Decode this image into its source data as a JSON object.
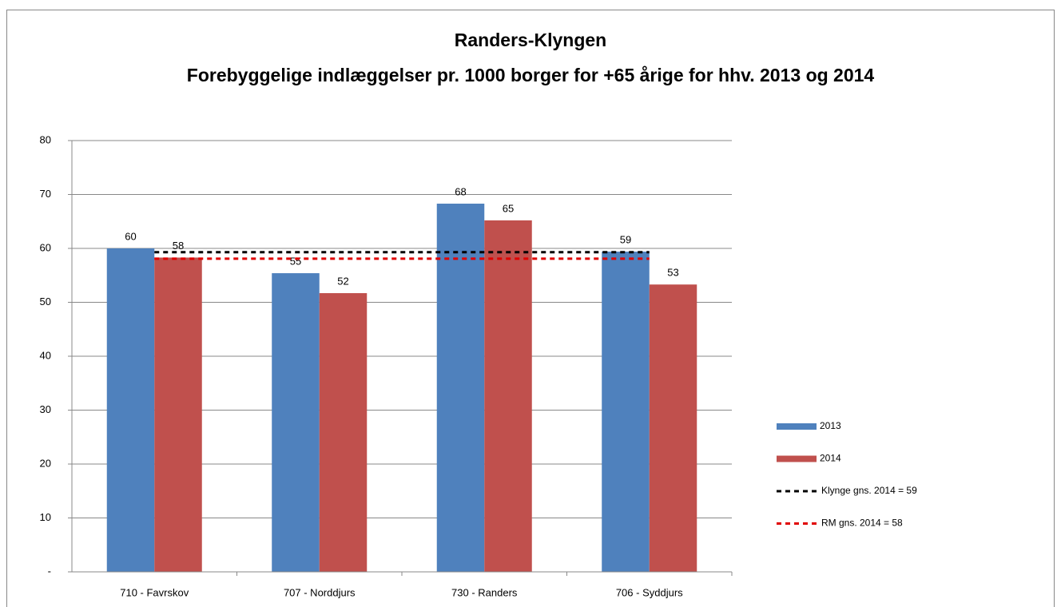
{
  "chart_data": {
    "type": "bar",
    "title": "Randers-Klyngen",
    "subtitle": "Forebyggelige indlæggelser pr. 1000 borger for +65 årige for hhv. 2013 og 2014",
    "categories": [
      "710 - Favrskov",
      "707 - Norddjurs",
      "730 - Randers",
      "706 - Syddjurs"
    ],
    "series": [
      {
        "name": "2013",
        "color": "#4f81bd",
        "values": [
          60.0,
          55.4,
          68.3,
          59.4
        ],
        "value_labels": [
          "60",
          "55",
          "68",
          "59"
        ]
      },
      {
        "name": "2014",
        "color": "#c0504d",
        "values": [
          58.3,
          51.7,
          65.2,
          53.3
        ],
        "value_labels": [
          "58",
          "52",
          "65",
          "53"
        ]
      }
    ],
    "reference_lines": [
      {
        "name": "Klynge gns. 2014 = 59",
        "color": "#000000",
        "value": 59.3
      },
      {
        "name": "RM gns. 2014 = 58",
        "color": "#e00000",
        "value": 58.1
      }
    ],
    "ylim": [
      0,
      80
    ],
    "yticks": [
      {
        "value": 0,
        "label": "-"
      },
      10,
      20,
      30,
      40,
      50,
      60,
      70,
      80
    ],
    "grid": true,
    "legend": "right"
  }
}
